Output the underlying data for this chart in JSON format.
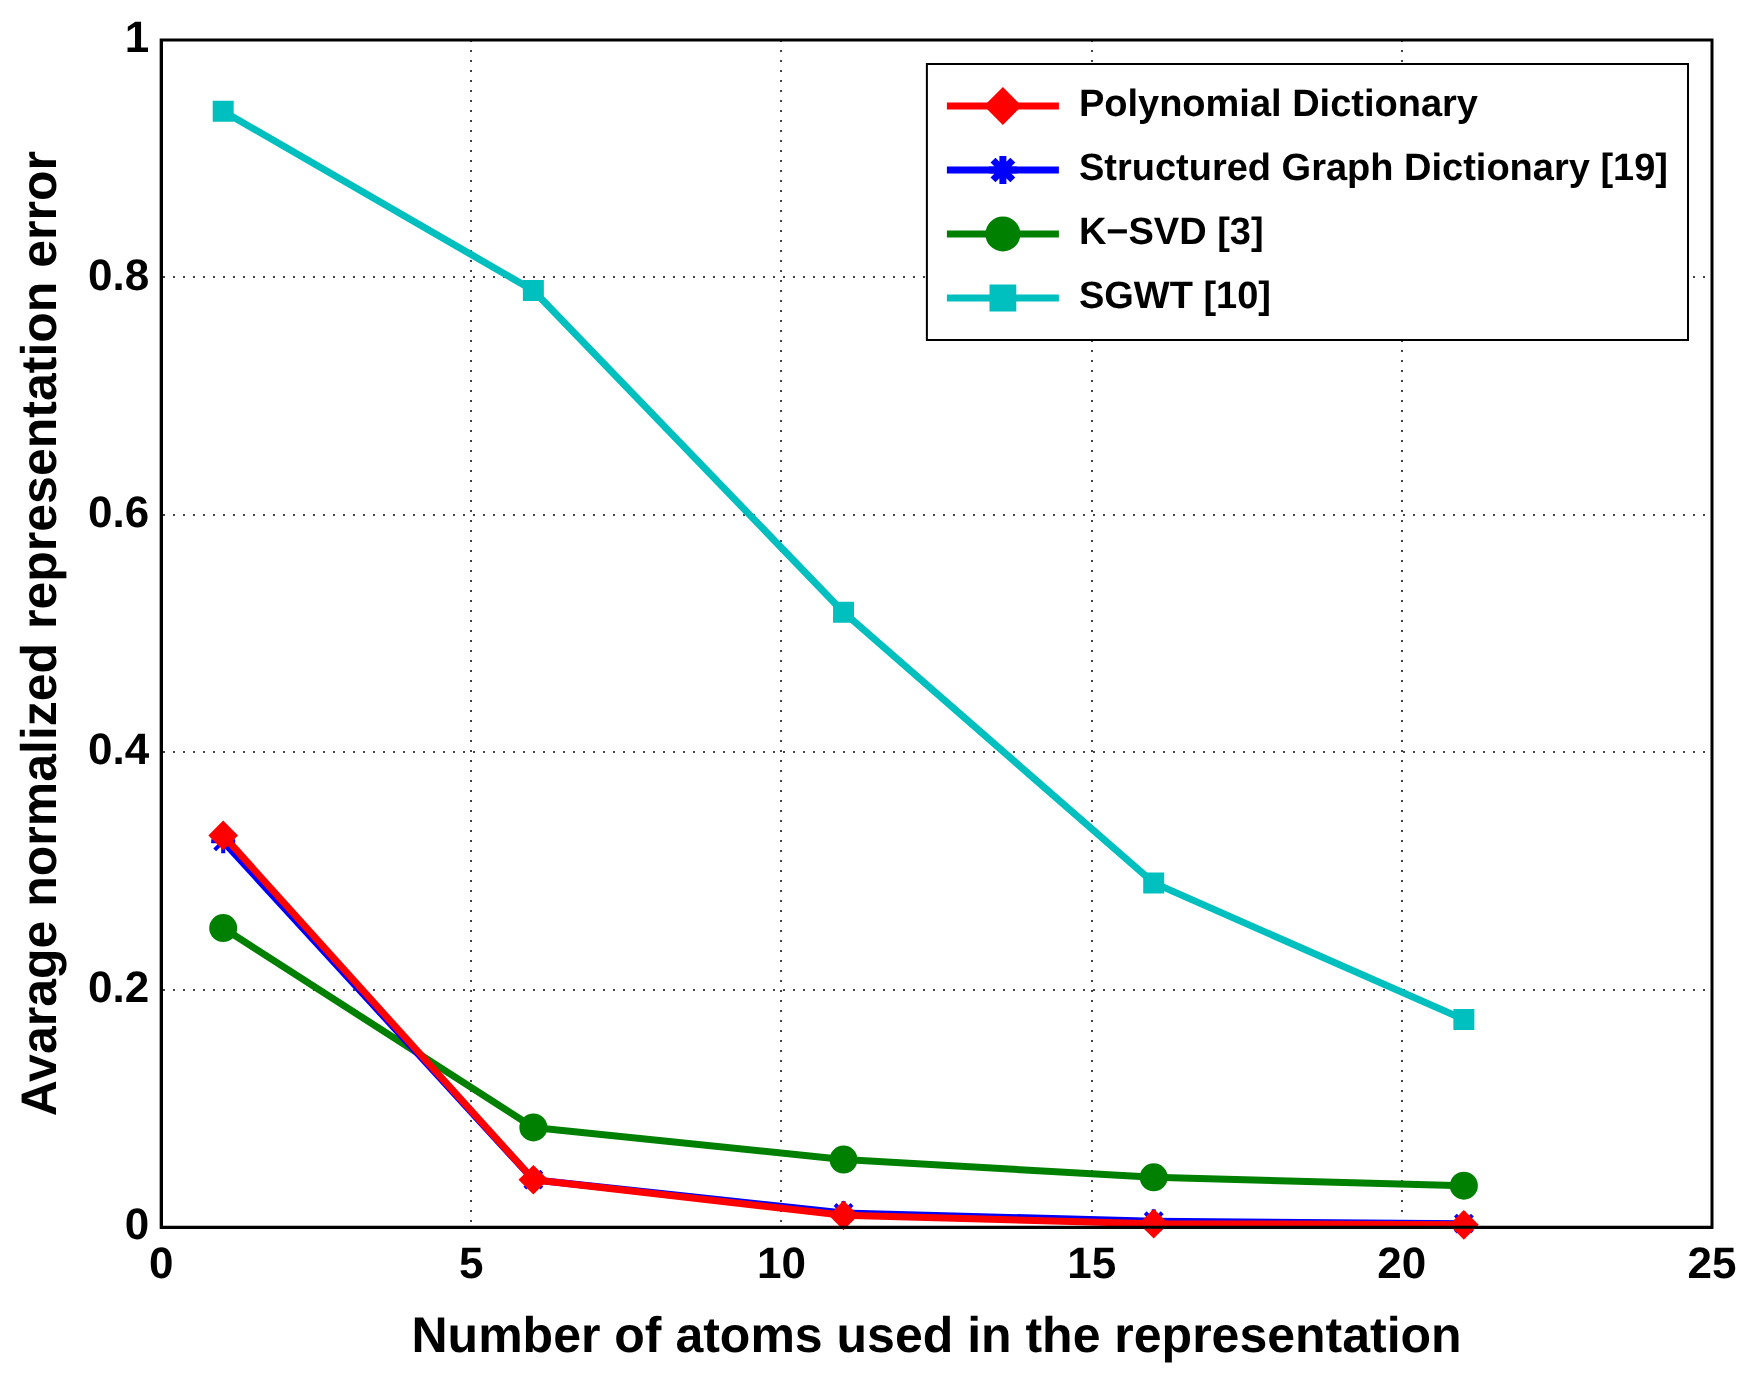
{
  "chart_data": {
    "type": "line",
    "xlabel": "Number of atoms used in the representation",
    "ylabel": "Avarage normalized representation error",
    "x": [
      1,
      6,
      11,
      16,
      21
    ],
    "series": [
      {
        "name": "Polynomial Dictionary",
        "color": "#ff0000",
        "marker": "diamond",
        "values": [
          0.33,
          0.04,
          0.01,
          0.003,
          0.002
        ]
      },
      {
        "name": "Structured Graph Dictionary [19]",
        "color": "#0000ff",
        "marker": "cross",
        "values": [
          0.325,
          0.04,
          0.012,
          0.005,
          0.003
        ]
      },
      {
        "name": "K−SVD [3]",
        "color": "#008000",
        "marker": "circle",
        "values": [
          0.252,
          0.084,
          0.057,
          0.042,
          0.035
        ]
      },
      {
        "name": "SGWT [10]",
        "color": "#00bfbf",
        "marker": "square",
        "values": [
          0.94,
          0.789,
          0.518,
          0.29,
          0.175
        ]
      }
    ],
    "xlim": [
      0,
      25
    ],
    "xticks": [
      0,
      5,
      10,
      15,
      20,
      25
    ],
    "ylim": [
      0,
      1
    ],
    "yticks": [
      0,
      0.2,
      0.4,
      0.6,
      0.8,
      1
    ],
    "grid": true,
    "legend": "top right",
    "line_style": "solid"
  }
}
